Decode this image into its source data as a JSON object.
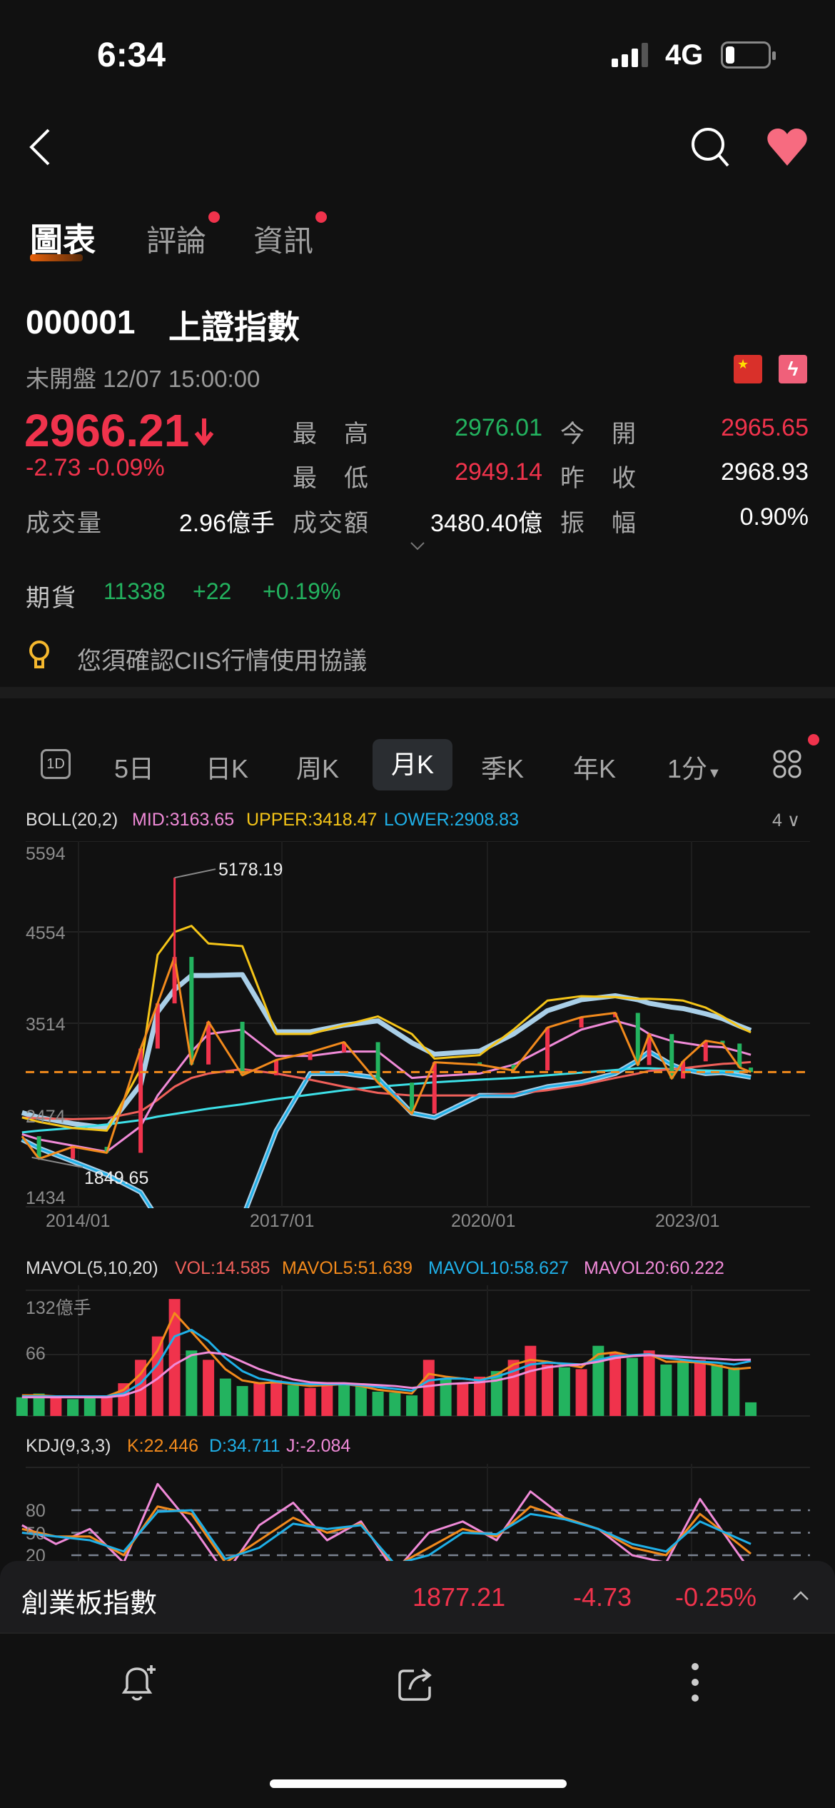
{
  "status_bar": {
    "time": "6:34",
    "network": "4G",
    "battery_level": 0.2
  },
  "nav": {
    "back_icon": "chevron-left-icon",
    "search_icon": "search-icon",
    "favorite_icon": "heart-icon",
    "favorite_color": "#f76b80"
  },
  "tabs": [
    {
      "label": "圖表",
      "active": true
    },
    {
      "label": "評論",
      "badge": true
    },
    {
      "label": "資訊",
      "badge": true
    }
  ],
  "quote": {
    "code": "000001",
    "name": "上證指數",
    "status": "未開盤 12/07 15:00:00",
    "price": "2966.21",
    "change": "-2.73",
    "change_pct": "-0.09%",
    "stats": [
      {
        "label": "最　高",
        "value": "2976.01",
        "color": "green"
      },
      {
        "label": "今　開",
        "value": "2965.65",
        "color": "red"
      },
      {
        "label": "最　低",
        "value": "2949.14",
        "color": "red"
      },
      {
        "label": "昨　收",
        "value": "2968.93",
        "color": "white"
      },
      {
        "label": "成交量",
        "value": "2.96億手",
        "color": "white"
      },
      {
        "label": "成交額",
        "value": "3480.40億",
        "color": "white"
      },
      {
        "label": "振　幅",
        "value": "0.90%",
        "color": "white"
      }
    ],
    "futures": {
      "label": "期貨",
      "value": "11338",
      "change": "+22",
      "change_pct": "+0.19%"
    },
    "notice": "您須確認CIIS行情使用協議"
  },
  "periods": [
    "5日",
    "日K",
    "周K",
    "月K",
    "季K",
    "年K",
    "1分"
  ],
  "period_icon_label": "1D",
  "active_period": "月K",
  "colors": {
    "up": "#f0334c",
    "down": "#23b35f",
    "upper": "#f5c518",
    "mid": "#f08ad8",
    "lower": "#1fb0e8",
    "band": "#a9cfe8",
    "ma_long": "#3de0e8",
    "ma_red": "#f0605a",
    "orange": "#f28a1c"
  },
  "boll": {
    "title": "BOLL(20,2)",
    "mid": "MID:3163.65",
    "upper": "UPPER:3418.47",
    "lower": "LOWER:2908.83",
    "count": "4"
  },
  "mavol": {
    "title": "MAVOL(5,10,20)",
    "vol": "VOL:14.585",
    "mavol5": "MAVOL5:51.639",
    "mavol10": "MAVOL10:58.627",
    "mavol20": "MAVOL20:60.222"
  },
  "kdj": {
    "title": "KDJ(9,3,3)",
    "k": "K:22.446",
    "d": "D:34.711",
    "j": "J:-2.084"
  },
  "chart_data": [
    {
      "type": "line",
      "title": "BOLL(20,2)",
      "y_ticks": [
        "5594",
        "4554",
        "3514",
        "2474",
        "1434"
      ],
      "ylim": [
        1434,
        5594
      ],
      "x_ticks": [
        "2014/01",
        "2017/01",
        "2020/01",
        "2023/01"
      ],
      "current_price_line": 2966.21,
      "annotations": [
        {
          "label": "5178.19",
          "x": "2015-06",
          "y": 5178.19
        },
        {
          "label": "1849.65",
          "x": "2013-06",
          "y": 1849.65
        }
      ],
      "x": [
        "2013-03",
        "2013-06",
        "2013-12",
        "2014-06",
        "2014-12",
        "2015-03",
        "2015-06",
        "2015-09",
        "2015-12",
        "2016-06",
        "2016-12",
        "2017-06",
        "2017-12",
        "2018-06",
        "2018-12",
        "2019-04",
        "2019-12",
        "2020-06",
        "2020-12",
        "2021-06",
        "2021-12",
        "2022-04",
        "2022-06",
        "2022-10",
        "2022-12",
        "2023-04",
        "2023-07",
        "2023-10",
        "2023-12"
      ],
      "series": [
        {
          "name": "close",
          "values": [
            2237,
            1980,
            2116,
            2048,
            3234,
            3748,
            4277,
            3053,
            3539,
            2930,
            3104,
            3192,
            3307,
            2847,
            2494,
            3078,
            3050,
            2985,
            3473,
            3591,
            3640,
            3047,
            3399,
            2893,
            3089,
            3323,
            3291,
            3018,
            2966
          ]
        },
        {
          "name": "UPPER",
          "values": [
            2450,
            2400,
            2330,
            2300,
            3000,
            4300,
            4560,
            4630,
            4430,
            4400,
            3400,
            3400,
            3500,
            3600,
            3400,
            3120,
            3160,
            3450,
            3780,
            3830,
            3820,
            3800,
            3800,
            3790,
            3780,
            3700,
            3600,
            3480,
            3418
          ]
        },
        {
          "name": "MID",
          "values": [
            2260,
            2200,
            2130,
            2060,
            2350,
            2700,
            2950,
            3200,
            3400,
            3450,
            3150,
            3150,
            3200,
            3200,
            2900,
            2920,
            2950,
            3050,
            3250,
            3450,
            3550,
            3480,
            3400,
            3320,
            3300,
            3260,
            3250,
            3200,
            3163
          ]
        },
        {
          "name": "LOWER",
          "values": [
            2200,
            2100,
            1950,
            1800,
            1600,
            1300,
            1100,
            1000,
            1150,
            1300,
            2300,
            2950,
            2950,
            2900,
            2500,
            2450,
            2700,
            2700,
            2800,
            2850,
            2950,
            3100,
            3200,
            3050,
            3000,
            2950,
            2960,
            2930,
            2908
          ]
        },
        {
          "values": [
            2280,
            2300,
            2330,
            2370,
            2420,
            2460,
            2490,
            2520,
            2550,
            2600,
            2660,
            2710,
            2760,
            2800,
            2830,
            2850,
            2880,
            2900,
            2930,
            2960,
            2990,
            3010,
            3010,
            3000,
            2990,
            2985,
            2980,
            2975,
            2975
          ]
        },
        {
          "values": [
            2450,
            2440,
            2430,
            2440,
            2520,
            2650,
            2800,
            2900,
            2950,
            3000,
            2950,
            2880,
            2800,
            2730,
            2700,
            2700,
            2700,
            2720,
            2760,
            2820,
            2900,
            2950,
            2980,
            3000,
            3010,
            3040,
            3060,
            3070,
            3080
          ]
        }
      ]
    },
    {
      "type": "bar",
      "title": "MAVOL(5,10,20)",
      "y_ticks": [
        "132億手",
        "66"
      ],
      "ylim": [
        0,
        132
      ],
      "x": [
        "2013-03",
        "2013-06",
        "2013-09",
        "2013-12",
        "2014-03",
        "2014-06",
        "2014-09",
        "2014-12",
        "2015-03",
        "2015-06",
        "2015-09",
        "2015-12",
        "2016-03",
        "2016-06",
        "2016-09",
        "2016-12",
        "2017-03",
        "2017-06",
        "2017-09",
        "2017-12",
        "2018-03",
        "2018-06",
        "2018-09",
        "2018-12",
        "2019-03",
        "2019-06",
        "2019-09",
        "2019-12",
        "2020-03",
        "2020-06",
        "2020-09",
        "2020-12",
        "2021-03",
        "2021-06",
        "2021-09",
        "2021-12",
        "2022-03",
        "2022-06",
        "2022-09",
        "2022-12",
        "2023-03",
        "2023-06",
        "2023-09",
        "2023-12"
      ],
      "values": [
        20,
        24,
        22,
        18,
        20,
        22,
        35,
        60,
        85,
        125,
        70,
        60,
        40,
        32,
        35,
        38,
        33,
        30,
        36,
        35,
        32,
        26,
        25,
        22,
        60,
        40,
        35,
        42,
        48,
        60,
        75,
        55,
        52,
        50,
        75,
        68,
        62,
        70,
        55,
        58,
        60,
        55,
        52,
        14.585
      ],
      "direction": [
        "down",
        "down",
        "up",
        "down",
        "down",
        "up",
        "up",
        "up",
        "up",
        "up",
        "down",
        "up",
        "down",
        "down",
        "up",
        "up",
        "down",
        "up",
        "up",
        "down",
        "down",
        "down",
        "down",
        "down",
        "up",
        "down",
        "up",
        "up",
        "down",
        "up",
        "up",
        "up",
        "down",
        "up",
        "down",
        "up",
        "down",
        "up",
        "down",
        "down",
        "up",
        "down",
        "down",
        "down"
      ],
      "series": [
        {
          "name": "MAVOL5",
          "values": [
            22,
            22,
            21,
            21,
            20,
            21,
            28,
            45,
            70,
            110,
            90,
            70,
            50,
            38,
            35,
            36,
            34,
            32,
            33,
            34,
            32,
            28,
            26,
            24,
            45,
            42,
            40,
            38,
            44,
            55,
            60,
            58,
            55,
            52,
            66,
            68,
            64,
            66,
            58,
            58,
            57,
            54,
            50,
            51.639
          ]
        },
        {
          "name": "MAVOL10",
          "values": [
            21,
            21,
            21,
            21,
            21,
            21,
            24,
            35,
            55,
            85,
            92,
            80,
            62,
            48,
            40,
            37,
            35,
            34,
            34,
            34,
            33,
            31,
            29,
            27,
            38,
            40,
            40,
            38,
            42,
            48,
            55,
            57,
            56,
            55,
            60,
            64,
            65,
            66,
            62,
            60,
            58,
            57,
            55,
            58.627
          ]
        },
        {
          "name": "MAVOL20",
          "values": [
            20,
            20,
            20,
            20,
            20,
            20,
            22,
            28,
            40,
            55,
            65,
            68,
            66,
            58,
            50,
            44,
            39,
            36,
            35,
            35,
            34,
            33,
            32,
            30,
            32,
            34,
            35,
            36,
            38,
            42,
            48,
            52,
            54,
            55,
            58,
            62,
            64,
            65,
            64,
            63,
            62,
            61,
            60,
            60.222
          ]
        }
      ]
    },
    {
      "type": "line",
      "title": "KDJ(9,3,3)",
      "y_ticks": [
        "80",
        "50",
        "20"
      ],
      "x": [
        "2013-03",
        "2013-09",
        "2014-03",
        "2014-09",
        "2015-03",
        "2015-09",
        "2016-03",
        "2016-09",
        "2017-03",
        "2017-09",
        "2018-03",
        "2018-09",
        "2019-03",
        "2019-09",
        "2020-03",
        "2020-09",
        "2021-03",
        "2021-09",
        "2022-03",
        "2022-09",
        "2023-03",
        "2023-09",
        "2023-12"
      ],
      "series": [
        {
          "name": "K",
          "values": [
            55,
            45,
            45,
            20,
            85,
            75,
            10,
            40,
            70,
            50,
            62,
            5,
            30,
            55,
            45,
            85,
            70,
            55,
            30,
            20,
            75,
            40,
            22
          ]
        },
        {
          "name": "D",
          "values": [
            50,
            45,
            40,
            25,
            78,
            80,
            15,
            30,
            62,
            55,
            60,
            8,
            20,
            50,
            48,
            75,
            68,
            55,
            35,
            25,
            65,
            45,
            35
          ]
        },
        {
          "name": "J",
          "values": [
            60,
            35,
            55,
            10,
            115,
            60,
            -5,
            60,
            90,
            40,
            65,
            -2,
            50,
            65,
            40,
            105,
            70,
            55,
            20,
            10,
            95,
            30,
            -2
          ]
        }
      ]
    }
  ],
  "bottom_ticker": {
    "name": "創業板指數",
    "price": "1877.21",
    "change": "-4.73",
    "change_pct": "-0.25%"
  },
  "toolbar": {
    "alert_icon": "bell-plus-icon",
    "share_icon": "share-icon",
    "more_icon": "more-vertical-icon"
  }
}
